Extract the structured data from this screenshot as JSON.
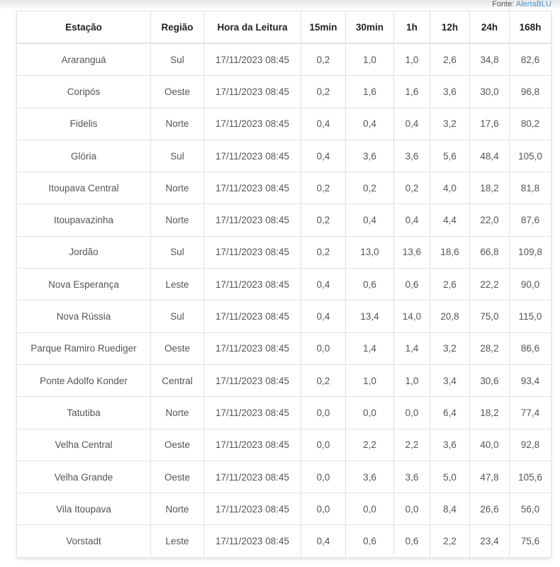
{
  "source": {
    "label": "Fonte:",
    "link": "AlertaBLU",
    "link_color": "#4a90c8"
  },
  "table": {
    "headers": [
      "Estação",
      "Região",
      "Hora da Leitura",
      "15min",
      "30min",
      "1h",
      "12h",
      "24h",
      "168h"
    ],
    "rows": [
      [
        "Araranguá",
        "Sul",
        "17/11/2023 08:45",
        "0,2",
        "1,0",
        "1,0",
        "2,6",
        "34,8",
        "82,6"
      ],
      [
        "Coripós",
        "Oeste",
        "17/11/2023 08:45",
        "0,2",
        "1,6",
        "1,6",
        "3,6",
        "30,0",
        "96,8"
      ],
      [
        "Fidelis",
        "Norte",
        "17/11/2023 08:45",
        "0,4",
        "0,4",
        "0,4",
        "3,2",
        "17,6",
        "80,2"
      ],
      [
        "Glória",
        "Sul",
        "17/11/2023 08:45",
        "0,4",
        "3,6",
        "3,6",
        "5,6",
        "48,4",
        "105,0"
      ],
      [
        "Itoupava Central",
        "Norte",
        "17/11/2023 08:45",
        "0,2",
        "0,2",
        "0,2",
        "4,0",
        "18,2",
        "81,8"
      ],
      [
        "Itoupavazinha",
        "Norte",
        "17/11/2023 08:45",
        "0,2",
        "0,4",
        "0,4",
        "4,4",
        "22,0",
        "87,6"
      ],
      [
        "Jordão",
        "Sul",
        "17/11/2023 08:45",
        "0,2",
        "13,0",
        "13,6",
        "18,6",
        "66,8",
        "109,8"
      ],
      [
        "Nova Esperança",
        "Leste",
        "17/11/2023 08:45",
        "0,4",
        "0,6",
        "0,6",
        "2,6",
        "22,2",
        "90,0"
      ],
      [
        "Nova Rússia",
        "Sul",
        "17/11/2023 08:45",
        "0,4",
        "13,4",
        "14,0",
        "20,8",
        "75,0",
        "115,0"
      ],
      [
        "Parque Ramiro Ruediger",
        "Oeste",
        "17/11/2023 08:45",
        "0,0",
        "1,4",
        "1,4",
        "3,2",
        "28,2",
        "86,6"
      ],
      [
        "Ponte Adolfo Konder",
        "Central",
        "17/11/2023 08:45",
        "0,2",
        "1,0",
        "1,0",
        "3,4",
        "30,6",
        "93,4"
      ],
      [
        "Tatutiba",
        "Norte",
        "17/11/2023 08:45",
        "0,0",
        "0,0",
        "0,0",
        "6,4",
        "18,2",
        "77,4"
      ],
      [
        "Velha Central",
        "Oeste",
        "17/11/2023 08:45",
        "0,0",
        "2,2",
        "2,2",
        "3,6",
        "40,0",
        "92,8"
      ],
      [
        "Velha Grande",
        "Oeste",
        "17/11/2023 08:45",
        "0,0",
        "3,6",
        "3,6",
        "5,0",
        "47,8",
        "105,6"
      ],
      [
        "Vila Itoupava",
        "Norte",
        "17/11/2023 08:45",
        "0,0",
        "0,0",
        "0,0",
        "8,4",
        "26,6",
        "56,0"
      ],
      [
        "Vorstadt",
        "Leste",
        "17/11/2023 08:45",
        "0,4",
        "0,6",
        "0,6",
        "2,2",
        "23,4",
        "75,6"
      ]
    ]
  }
}
